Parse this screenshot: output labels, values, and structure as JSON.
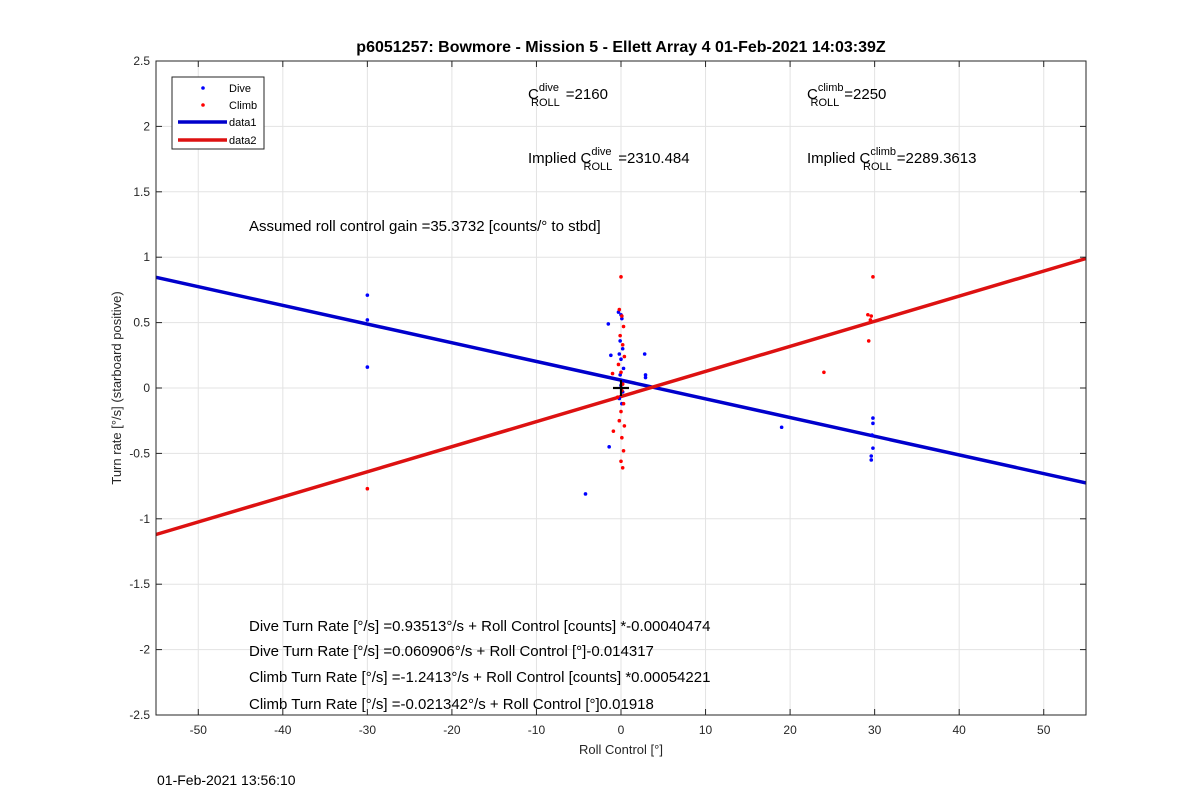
{
  "chart_data": {
    "type": "scatter",
    "title": "p6051257: Bowmore - Mission 5 - Ellett Array 4 01-Feb-2021 14:03:39Z",
    "xlabel": "Roll Control [°]",
    "ylabel": "Turn rate [°/s] (starboard positive)",
    "xlim": [
      -55,
      55
    ],
    "ylim": [
      -2.5,
      2.5
    ],
    "xticks": [
      -50,
      -40,
      -30,
      -20,
      -10,
      0,
      10,
      20,
      30,
      40,
      50
    ],
    "yticks": [
      -2.5,
      -2,
      -1.5,
      -1,
      -0.5,
      0,
      0.5,
      1,
      1.5,
      2,
      2.5
    ],
    "grid": true,
    "legend_position": "top-left",
    "series": [
      {
        "name": "Dive",
        "kind": "points",
        "color": "#0000ff",
        "points": [
          [
            -30,
            0.71
          ],
          [
            -30,
            0.52
          ],
          [
            -30,
            0.16
          ],
          [
            -1.5,
            0.49
          ],
          [
            -1.2,
            0.25
          ],
          [
            -1.4,
            -0.45
          ],
          [
            -4.2,
            -0.81
          ],
          [
            -0.3,
            0.58
          ],
          [
            0.0,
            0.56
          ],
          [
            0.1,
            0.53
          ],
          [
            -0.1,
            0.36
          ],
          [
            0.2,
            0.3
          ],
          [
            -0.2,
            0.26
          ],
          [
            0.0,
            0.22
          ],
          [
            0.3,
            0.15
          ],
          [
            -0.1,
            0.1
          ],
          [
            0.1,
            0.05
          ],
          [
            0.0,
            0.02
          ],
          [
            0.2,
            -0.03
          ],
          [
            -0.2,
            -0.08
          ],
          [
            0.1,
            -0.12
          ],
          [
            2.8,
            0.26
          ],
          [
            2.9,
            0.1
          ],
          [
            2.9,
            0.08
          ],
          [
            19,
            -0.3
          ],
          [
            29.8,
            -0.23
          ],
          [
            29.8,
            -0.27
          ],
          [
            29.7,
            -0.36
          ],
          [
            29.8,
            -0.46
          ],
          [
            29.6,
            -0.52
          ],
          [
            29.6,
            -0.55
          ]
        ]
      },
      {
        "name": "Climb",
        "kind": "points",
        "color": "#ff0000",
        "points": [
          [
            -30,
            -0.77
          ],
          [
            0.0,
            0.85
          ],
          [
            -0.2,
            0.6
          ],
          [
            0.1,
            0.55
          ],
          [
            0.3,
            0.47
          ],
          [
            -0.1,
            0.4
          ],
          [
            0.2,
            0.33
          ],
          [
            0.4,
            0.24
          ],
          [
            -0.3,
            0.18
          ],
          [
            0.0,
            0.12
          ],
          [
            -1.0,
            0.11
          ],
          [
            0.2,
            0.03
          ],
          [
            0.1,
            -0.02
          ],
          [
            -0.4,
            -0.07
          ],
          [
            0.3,
            -0.12
          ],
          [
            0.0,
            -0.18
          ],
          [
            -0.2,
            -0.25
          ],
          [
            0.4,
            -0.29
          ],
          [
            -0.9,
            -0.33
          ],
          [
            0.1,
            -0.38
          ],
          [
            0.3,
            -0.48
          ],
          [
            0.0,
            -0.56
          ],
          [
            0.2,
            -0.61
          ],
          [
            24,
            0.12
          ],
          [
            29.2,
            0.56
          ],
          [
            29.6,
            0.55
          ],
          [
            29.5,
            0.52
          ],
          [
            29.8,
            0.85
          ],
          [
            29.3,
            0.36
          ]
        ]
      },
      {
        "name": "data1",
        "kind": "line",
        "color": "#0000cc",
        "x": [
          -55,
          55
        ],
        "y": [
          0.846,
          -0.726
        ]
      },
      {
        "name": "data2",
        "kind": "line",
        "color": "#dd1111",
        "x": [
          -55,
          55
        ],
        "y": [
          -1.12,
          0.99
        ]
      }
    ],
    "crosshair": {
      "x": 0,
      "y": 0
    },
    "annotations": {
      "c_dive": {
        "base": "C",
        "sup": "dive",
        "sub": "ROLL",
        "value": "=2160"
      },
      "c_climb": {
        "base": "C",
        "sup": "climb",
        "sub": "ROLL",
        "value": "=2250"
      },
      "implied_dive": {
        "prefix": "Implied C",
        "sup": "dive",
        "sub": "ROLL",
        "value": "=2310.484"
      },
      "implied_climb": {
        "prefix": "Implied C",
        "sup": "climb",
        "sub": "ROLL",
        "value": "=2289.3613"
      },
      "gain": "Assumed roll control gain =35.3732 [counts/° to stbd]",
      "eq1": "Dive Turn Rate [°/s] =0.93513°/s + Roll Control [counts] *-0.00040474",
      "eq2": "Dive Turn Rate [°/s] =0.060906°/s + Roll Control [°]-0.014317",
      "eq3": "Climb Turn Rate [°/s] =-1.2413°/s + Roll Control [counts] *0.00054221",
      "eq4": "Climb Turn Rate [°/s] =-0.021342°/s + Roll Control [°]0.01918"
    }
  },
  "footer_timestamp": "01-Feb-2021 13:56:10"
}
